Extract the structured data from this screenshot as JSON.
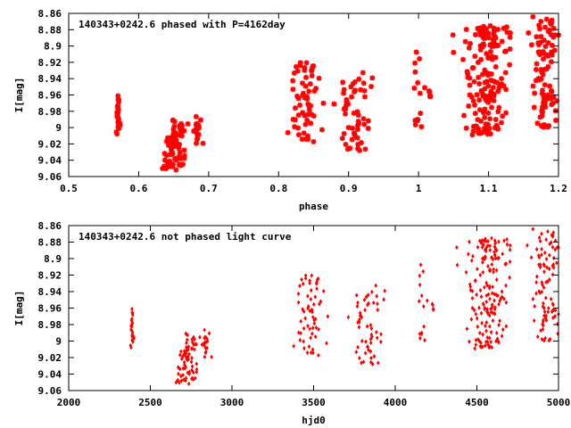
{
  "colors": {
    "points": "#ff0000",
    "axes": "#000000",
    "background": "#ffffff"
  },
  "chart_data": [
    {
      "type": "scatter",
      "title": "140343+0242.6 phased with P=4162day",
      "xlabel": "phase",
      "ylabel": "I[mag]",
      "xlim": [
        0.5,
        1.2
      ],
      "ylim": [
        9.06,
        8.86
      ],
      "y_inverted": true,
      "grid": false,
      "marker": "asterisk",
      "xticks": [
        "0.5",
        "0.6",
        "0.7",
        "0.8",
        "0.9",
        "1",
        "1.1",
        "1.2"
      ],
      "yticks": [
        "8.86",
        "8.88",
        "8.9",
        "8.92",
        "8.94",
        "8.96",
        "8.98",
        "9",
        "9.02",
        "9.04",
        "9.06"
      ],
      "clusters": [
        {
          "x": 0.571,
          "spread": 0.003,
          "y_min": 8.96,
          "y_max": 9.012,
          "count": 22
        },
        {
          "x": 0.652,
          "spread": 0.015,
          "y_min": 8.99,
          "y_max": 9.052,
          "count": 70
        },
        {
          "x": 0.684,
          "spread": 0.005,
          "y_min": 8.985,
          "y_max": 9.02,
          "count": 18
        },
        {
          "x": 0.838,
          "spread": 0.017,
          "y_min": 8.92,
          "y_max": 9.018,
          "count": 60
        },
        {
          "x": 0.908,
          "spread": 0.022,
          "y_min": 8.925,
          "y_max": 9.03,
          "count": 55
        },
        {
          "x": 0.998,
          "spread": 0.006,
          "y_min": 8.905,
          "y_max": 9.002,
          "count": 14
        },
        {
          "x": 1.017,
          "spread": 0.002,
          "y_min": 8.95,
          "y_max": 8.97,
          "count": 5
        },
        {
          "x": 1.1,
          "spread": 0.025,
          "y_min": 8.875,
          "y_max": 9.012,
          "count": 170
        },
        {
          "x": 1.18,
          "spread": 0.015,
          "y_min": 8.862,
          "y_max": 9.0,
          "count": 90
        }
      ]
    },
    {
      "type": "scatter",
      "title": "140343+0242.6 not phased light curve",
      "xlabel": "hjd0",
      "ylabel": "I[mag]",
      "xlim": [
        2000,
        5000
      ],
      "ylim": [
        9.06,
        8.86
      ],
      "y_inverted": true,
      "grid": false,
      "marker": "diamond",
      "xticks": [
        "2000",
        "2500",
        "3000",
        "3500",
        "4000",
        "4500",
        "5000"
      ],
      "yticks": [
        "8.86",
        "8.88",
        "8.9",
        "8.92",
        "8.94",
        "8.96",
        "8.98",
        "9",
        "9.02",
        "9.04",
        "9.06"
      ],
      "clusters": [
        {
          "x": 2390,
          "spread": 12,
          "y_min": 8.96,
          "y_max": 9.012,
          "count": 22
        },
        {
          "x": 2730,
          "spread": 60,
          "y_min": 8.99,
          "y_max": 9.052,
          "count": 70
        },
        {
          "x": 2840,
          "spread": 22,
          "y_min": 8.985,
          "y_max": 9.02,
          "count": 18
        },
        {
          "x": 3480,
          "spread": 70,
          "y_min": 8.92,
          "y_max": 9.018,
          "count": 60
        },
        {
          "x": 3830,
          "spread": 90,
          "y_min": 8.925,
          "y_max": 9.03,
          "count": 55
        },
        {
          "x": 4160,
          "spread": 20,
          "y_min": 8.905,
          "y_max": 9.002,
          "count": 14
        },
        {
          "x": 4235,
          "spread": 8,
          "y_min": 8.95,
          "y_max": 8.97,
          "count": 5
        },
        {
          "x": 4580,
          "spread": 100,
          "y_min": 8.875,
          "y_max": 9.012,
          "count": 170
        },
        {
          "x": 4920,
          "spread": 70,
          "y_min": 8.862,
          "y_max": 9.0,
          "count": 90
        }
      ]
    }
  ]
}
